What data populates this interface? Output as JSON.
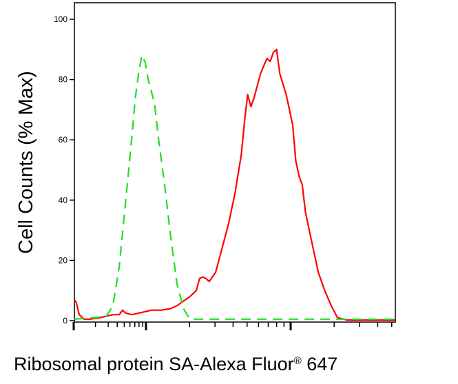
{
  "chart_data": {
    "type": "line",
    "xlabel": "Ribosomal protein SA-Alexa Fluor",
    "xlabel_sup": "®",
    "xlabel_suffix": " 647",
    "ylabel": "Cell Counts (% Max)",
    "x_scale": "log",
    "xlim": [
      0,
      100
    ],
    "ylim": [
      0,
      100
    ],
    "y_ticks": [
      0,
      20,
      40,
      60,
      80,
      100
    ],
    "x_tick_labels_shown": false,
    "grid": false,
    "legend": "none",
    "series": [
      {
        "color": "#ff0000",
        "dash": "solid",
        "points": [
          [
            0,
            7
          ],
          [
            0.6,
            6
          ],
          [
            1.5,
            2
          ],
          [
            3,
            0.5
          ],
          [
            5,
            0.5
          ],
          [
            8,
            1
          ],
          [
            10,
            1.5
          ],
          [
            12,
            2
          ],
          [
            14,
            2
          ],
          [
            15,
            3.5
          ],
          [
            16,
            2.5
          ],
          [
            18,
            2
          ],
          [
            20,
            2.5
          ],
          [
            22,
            3
          ],
          [
            24,
            3.5
          ],
          [
            27,
            3.5
          ],
          [
            30,
            4
          ],
          [
            32,
            5
          ],
          [
            34,
            6.5
          ],
          [
            36,
            8
          ],
          [
            38,
            10
          ],
          [
            39,
            14
          ],
          [
            40,
            14.5
          ],
          [
            41,
            14
          ],
          [
            42,
            13
          ],
          [
            44,
            16
          ],
          [
            46,
            24
          ],
          [
            48,
            32
          ],
          [
            50,
            42
          ],
          [
            52,
            55
          ],
          [
            53,
            66
          ],
          [
            54,
            75
          ],
          [
            55,
            71
          ],
          [
            56,
            74
          ],
          [
            58,
            82
          ],
          [
            60,
            87
          ],
          [
            61,
            86
          ],
          [
            62,
            89
          ],
          [
            63,
            90
          ],
          [
            64,
            82
          ],
          [
            66,
            75
          ],
          [
            68,
            65
          ],
          [
            69,
            53
          ],
          [
            70,
            48
          ],
          [
            71,
            45
          ],
          [
            72,
            36
          ],
          [
            74,
            26
          ],
          [
            76,
            16
          ],
          [
            78,
            10
          ],
          [
            80,
            5
          ],
          [
            82,
            1
          ],
          [
            85,
            0.2
          ],
          [
            100,
            0.2
          ]
        ]
      },
      {
        "color": "#22dd22",
        "dash": "dashed",
        "points": [
          [
            0,
            0.5
          ],
          [
            6,
            1
          ],
          [
            10,
            1.5
          ],
          [
            12,
            5
          ],
          [
            14,
            18
          ],
          [
            16,
            40
          ],
          [
            18,
            62
          ],
          [
            19,
            74
          ],
          [
            20,
            82
          ],
          [
            21,
            88
          ],
          [
            22,
            86
          ],
          [
            23,
            80
          ],
          [
            25,
            72
          ],
          [
            26,
            62
          ],
          [
            28,
            46
          ],
          [
            30,
            28
          ],
          [
            32,
            12
          ],
          [
            34,
            4
          ],
          [
            36,
            0.5
          ],
          [
            50,
            0.5
          ],
          [
            100,
            0.5
          ]
        ]
      }
    ]
  }
}
